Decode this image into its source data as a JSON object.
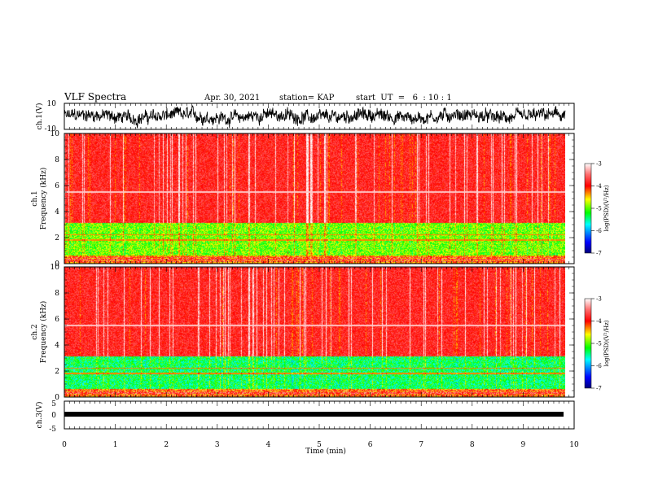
{
  "header": {
    "title": "VLF Spectra",
    "date": "Apr. 30, 2021",
    "station": "station= KAP",
    "start": "start  UT  =   6  : 10 : 1"
  },
  "chart_data": [
    {
      "id": "ch1-waveform",
      "type": "line",
      "ylabel": "ch.1(V)",
      "ylim": [
        -10,
        10
      ],
      "yticks": [
        "10",
        "-10"
      ],
      "xlim": [
        0,
        10
      ],
      "note": "dense noisy waveform roughly between -6 and 6 V"
    },
    {
      "id": "ch1-spectrogram",
      "type": "heatmap",
      "ylabel_lines": [
        "ch.1",
        "Frequency (kHz)"
      ],
      "ylim": [
        0,
        10
      ],
      "yticks": [
        "0",
        "2",
        "4",
        "6",
        "8",
        "10"
      ],
      "xlim": [
        0,
        10
      ],
      "data_extent_min": 9.83,
      "colorbar": {
        "label": "log(PSD)(V²/Hz)",
        "range": [
          -7,
          -3
        ],
        "ticks": [
          "-3",
          "-4",
          "-5",
          "-6",
          "-7"
        ]
      }
    },
    {
      "id": "ch2-spectrogram",
      "type": "heatmap",
      "ylabel_lines": [
        "ch.2",
        "Frequency (kHz)"
      ],
      "ylim": [
        0,
        10
      ],
      "yticks": [
        "0",
        "2",
        "4",
        "6",
        "8",
        "10"
      ],
      "xlim": [
        0,
        10
      ],
      "data_extent_min": 9.83,
      "colorbar": {
        "label": "log(PSD)(V²/Hz)",
        "range": [
          -7,
          -3
        ],
        "ticks": [
          "-3",
          "-4",
          "-5",
          "-6",
          "-7"
        ]
      }
    },
    {
      "id": "ch3-waveform",
      "type": "line",
      "ylabel": "ch.3(V)",
      "ylim": [
        -5,
        5
      ],
      "yticks": [
        "5",
        "0",
        "-5"
      ],
      "xlim": [
        0,
        10
      ],
      "note": "thick flat trace near -1 V"
    }
  ],
  "xaxis": {
    "label": "Time (min)",
    "ticks": [
      "0",
      "1",
      "2",
      "3",
      "4",
      "5",
      "6",
      "7",
      "8",
      "9",
      "10"
    ]
  },
  "colors": {
    "trace": "#000000",
    "colormap": [
      "#000080",
      "#0000ff",
      "#00ffff",
      "#00ff00",
      "#ffff00",
      "#ff0000",
      "#ffffff"
    ]
  }
}
